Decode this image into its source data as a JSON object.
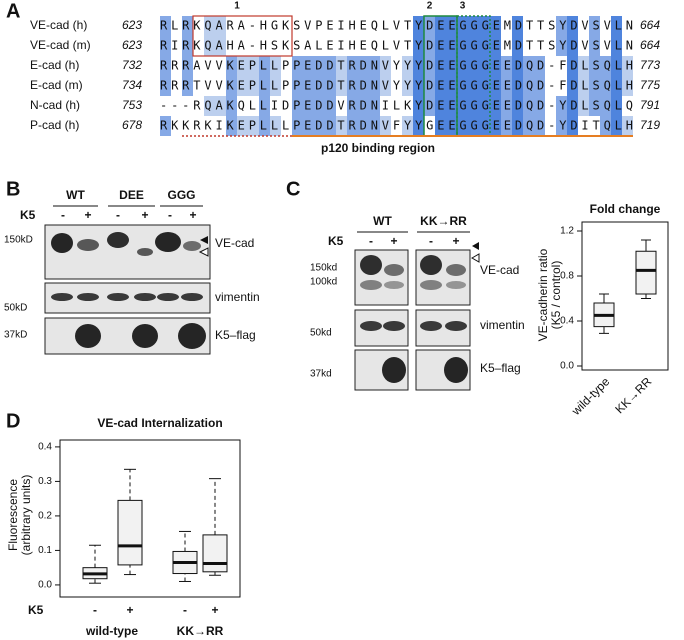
{
  "panel_a": {
    "letter": "A",
    "column_numbers": [
      "1",
      "2",
      "3"
    ],
    "rows": [
      {
        "name": "VE-cad (h)",
        "start": "623",
        "sequence": "RLRKQARA-HGKSVPEIHEQLVTYDEEGGGEMDTTSYDVSVLN",
        "end": "664"
      },
      {
        "name": "VE-cad (m)",
        "start": "623",
        "sequence": "RIRKQAHA-HSKSALEIHEQLVTYDEEGGGEMDTTSYDVSVLN",
        "end": "664"
      },
      {
        "name": "E-cad (h)",
        "start": "732",
        "sequence": "RRRAVVKEPLLPPEDDTRDNVYYYDEEGGGEEDQD-FDLSQLH",
        "end": "773"
      },
      {
        "name": "E-cad (m)",
        "start": "734",
        "sequence": "RRRTVVKEPLLPPEDDTRDNVYYYDEEGGGEEDQD-FDLSQLH",
        "end": "775"
      },
      {
        "name": "N-cad (h)",
        "start": "753",
        "sequence": "---RQAKQLLIDPEDDVRDNILKYDEEGGGEEDQD-YDLSQLQ",
        "end": "791"
      },
      {
        "name": "P-cad (h)",
        "start": "678",
        "sequence": "RKKRKIKEPLLLPEDDTRDNVFYYGEEGGGEEDQD-YDITQLH",
        "end": "719"
      }
    ],
    "region_label": "p120 binding region"
  },
  "panel_b": {
    "letter": "B",
    "groups": [
      "WT",
      "DEE",
      "GGG"
    ],
    "treatment_label": "K5",
    "signs": [
      "-",
      "+",
      "-",
      "+",
      "-",
      "+"
    ],
    "markers": [
      "150kD",
      "50kD",
      "37kD"
    ],
    "blot_labels": [
      "VE-cad",
      "vimentin",
      "K5–flag"
    ]
  },
  "panel_c": {
    "letter": "C",
    "groups": [
      "WT",
      "KK→RR"
    ],
    "treatment_label": "K5",
    "signs": [
      "-",
      "+",
      "-",
      "+"
    ],
    "markers": [
      "150kd",
      "100kd",
      "50kd",
      "37kd"
    ],
    "blot_labels": [
      "VE-cad",
      "vimentin",
      "K5–flag"
    ],
    "fold_change": {
      "title": "Fold change",
      "y_label": [
        "VE-cadherin ratio",
        "(K5 / control)"
      ],
      "ylim": [
        0,
        1.2
      ],
      "yticks": [
        {
          "value": 0,
          "label": "0.0"
        },
        0.4,
        0.8,
        1.2
      ],
      "categories": [
        "wild-type",
        "KK→RR"
      ],
      "boxes": [
        {
          "min": 0.29,
          "q1": 0.35,
          "median": 0.45,
          "q3": 0.56,
          "max": 0.64
        },
        {
          "min": 0.6,
          "q1": 0.64,
          "median": 0.85,
          "q3": 1.02,
          "max": 1.12
        }
      ]
    }
  },
  "panel_d": {
    "letter": "D",
    "title": "VE-cad Internalization",
    "y_label": [
      "Fluorescence",
      "(arbitrary units)"
    ],
    "ylim": [
      -0.035,
      0.42
    ],
    "yticks": [
      {
        "value": 0,
        "label": "0.0"
      },
      0.1,
      0.2,
      0.3,
      0.4
    ],
    "treatment_label": "K5",
    "signs": [
      "-",
      "+",
      "-",
      "+"
    ],
    "groups": [
      "wild-type",
      "KK→RR"
    ],
    "boxes": [
      {
        "min": 0.005,
        "q1": 0.018,
        "median": 0.032,
        "q3": 0.05,
        "max": 0.115
      },
      {
        "min": 0.03,
        "q1": 0.058,
        "median": 0.113,
        "q3": 0.245,
        "max": 0.335
      },
      {
        "min": 0.01,
        "q1": 0.033,
        "median": 0.065,
        "q3": 0.097,
        "max": 0.155
      },
      {
        "min": 0.028,
        "q1": 0.038,
        "median": 0.062,
        "q3": 0.145,
        "max": 0.308
      }
    ]
  }
}
